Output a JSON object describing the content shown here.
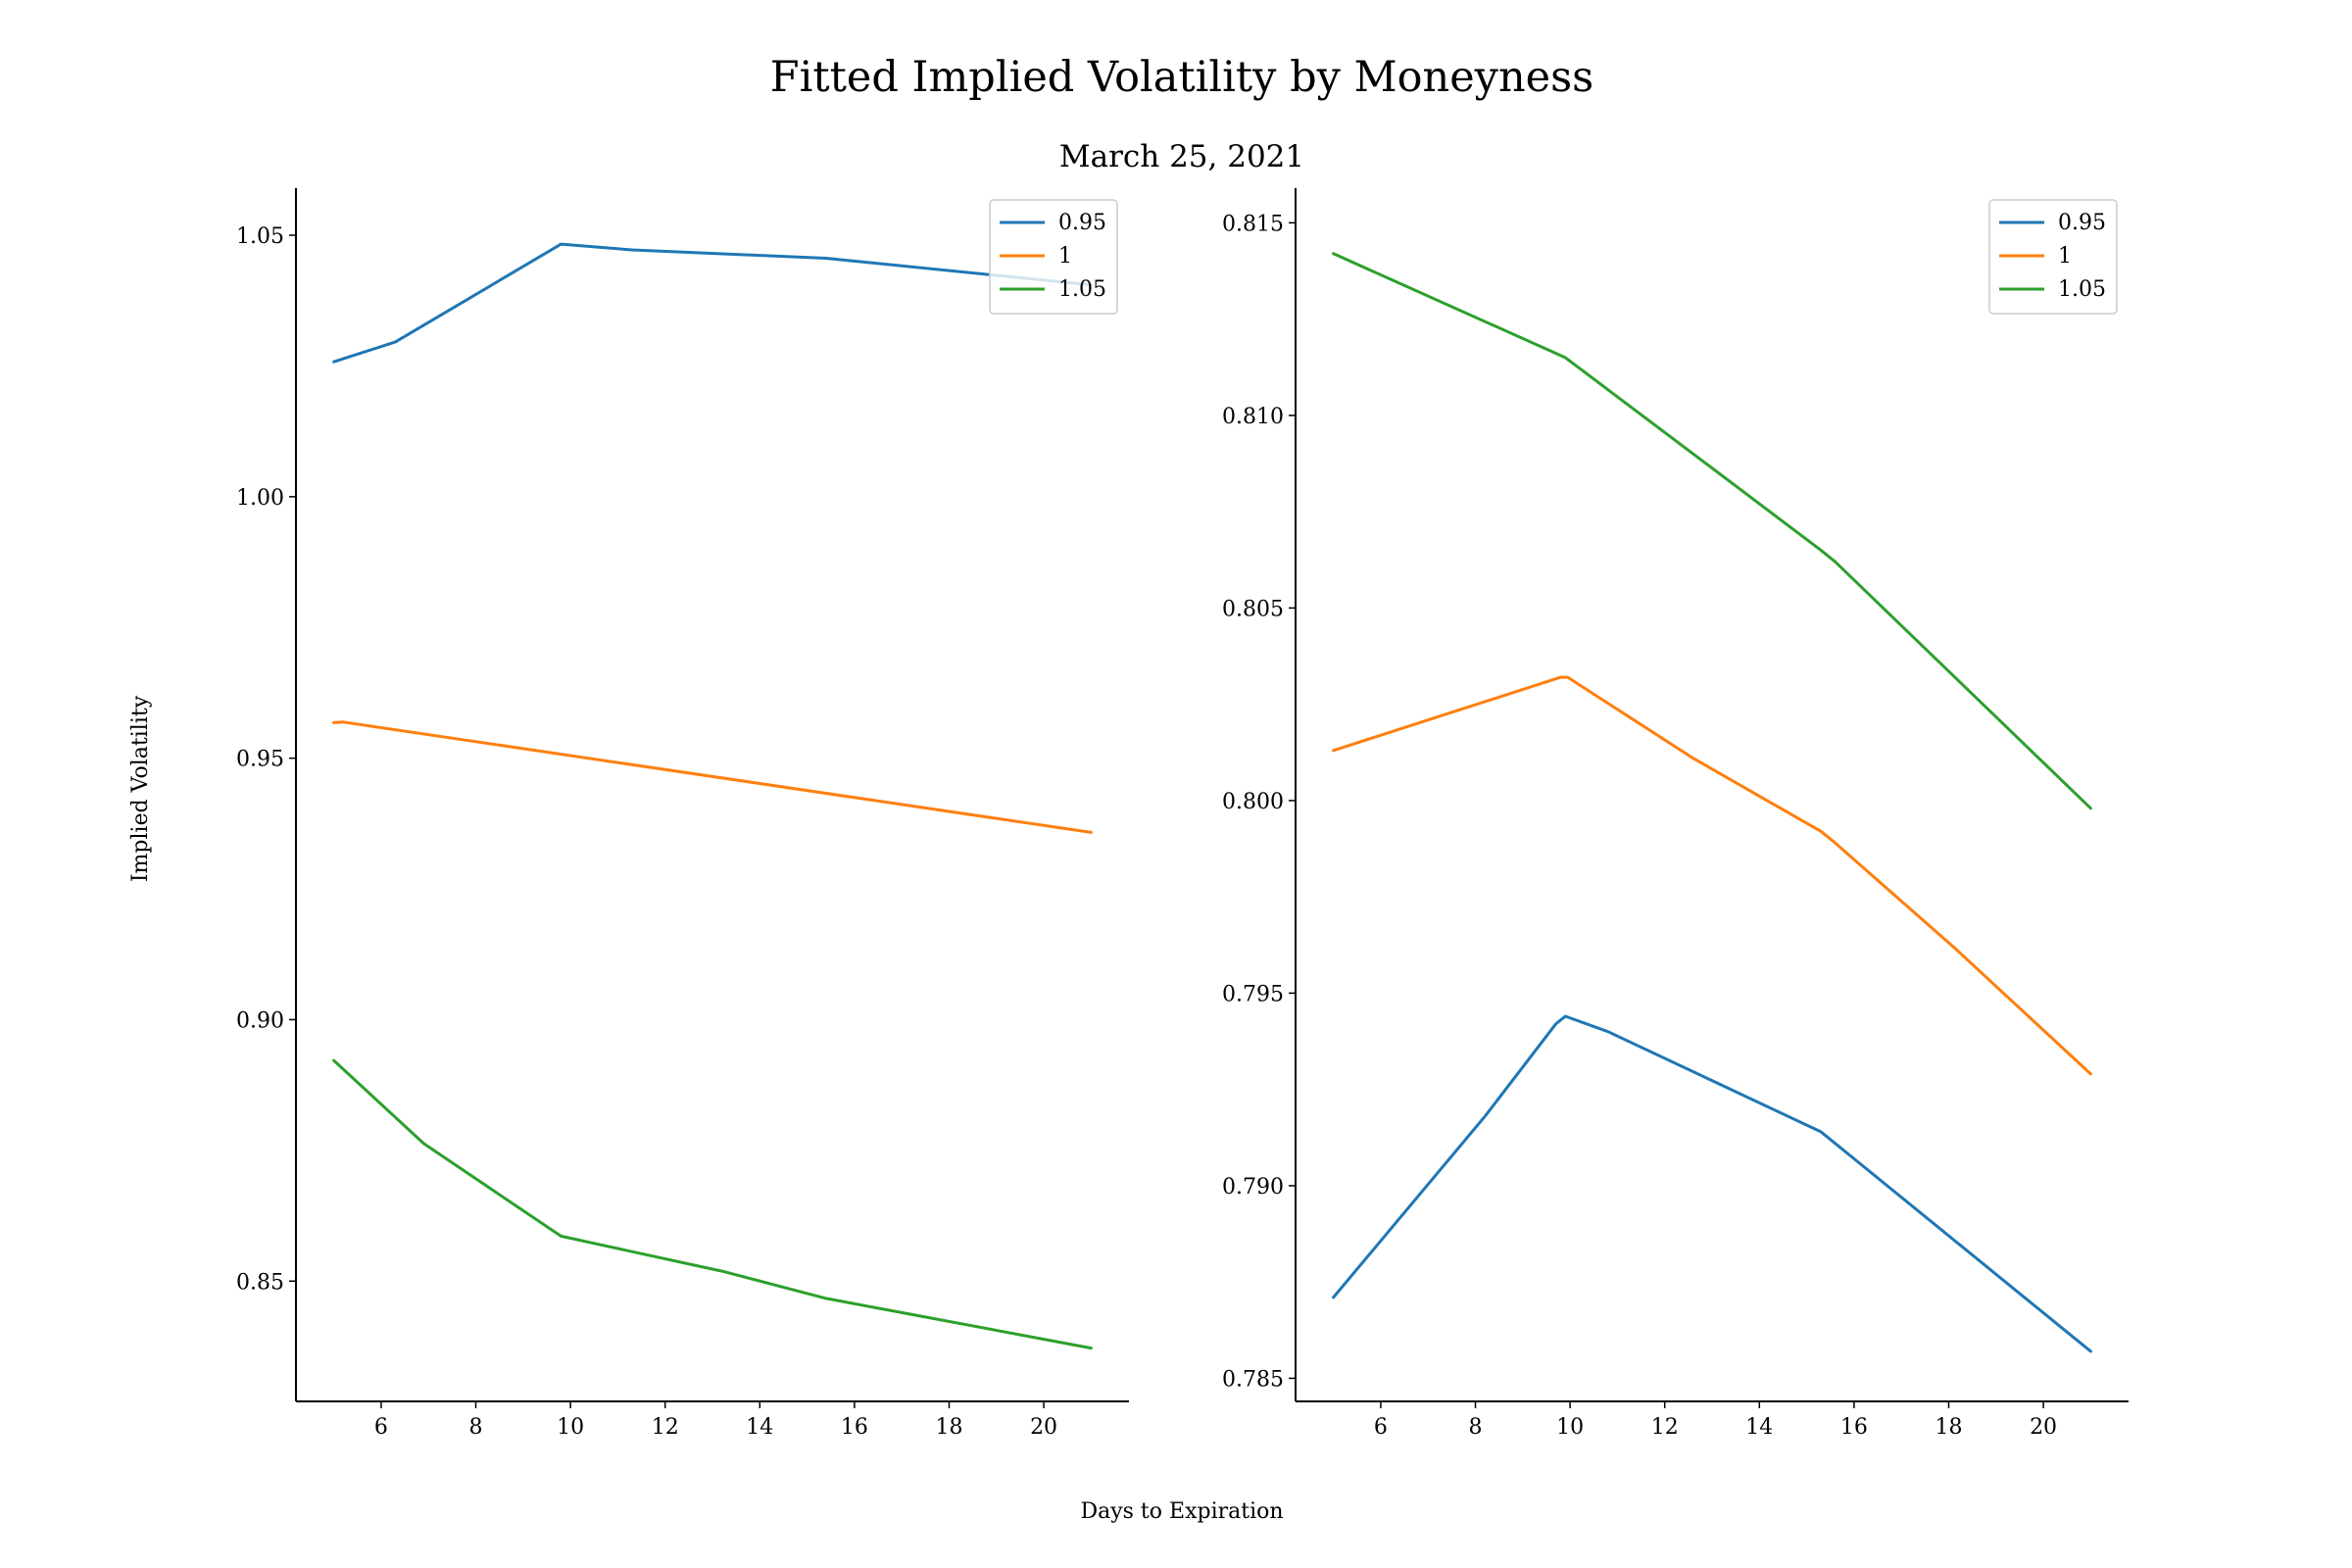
{
  "figure": {
    "title": "Fitted Implied Volatility by Moneyness",
    "subtitle": "March 25, 2021",
    "xlabel": "Days to Expiration",
    "ylabel": "Implied Volatility"
  },
  "colors": {
    "0.95": "#1f77b4",
    "1": "#ff7f0e",
    "1.05": "#2ca02c"
  },
  "chart_data": [
    {
      "type": "line",
      "legend_position": "top-right",
      "grid": false,
      "xlim": [
        4.2,
        21.8
      ],
      "ylim": [
        0.827,
        1.059
      ],
      "xticks": [
        6,
        8,
        10,
        12,
        14,
        16,
        18,
        20
      ],
      "yticks": [
        0.85,
        0.9,
        0.95,
        1.0,
        1.05
      ],
      "ytick_labels": [
        "0.85",
        "0.90",
        "0.95",
        "1.00",
        "1.05"
      ],
      "series": [
        {
          "name": "0.95",
          "color": "#1f77b4",
          "x": [
            5,
            6.3,
            9.8,
            11.3,
            15.4,
            21
          ],
          "y": [
            1.0258,
            1.0296,
            1.0483,
            1.0472,
            1.0456,
            1.0405
          ]
        },
        {
          "name": "1",
          "color": "#ff7f0e",
          "x": [
            5,
            5.2,
            21
          ],
          "y": [
            0.9568,
            0.9569,
            0.9358
          ]
        },
        {
          "name": "1.05",
          "color": "#2ca02c",
          "x": [
            5,
            6.9,
            9.8,
            13.2,
            15.4,
            21
          ],
          "y": [
            0.8922,
            0.8763,
            0.8586,
            0.8519,
            0.8467,
            0.8372
          ]
        }
      ]
    },
    {
      "type": "line",
      "legend_position": "top-right",
      "grid": false,
      "xlim": [
        4.2,
        21.8
      ],
      "ylim": [
        0.7844,
        0.8159
      ],
      "xticks": [
        6,
        8,
        10,
        12,
        14,
        16,
        18,
        20
      ],
      "yticks": [
        0.785,
        0.79,
        0.795,
        0.8,
        0.805,
        0.81,
        0.815
      ],
      "ytick_labels": [
        "0.785",
        "0.790",
        "0.795",
        "0.800",
        "0.805",
        "0.810",
        "0.815"
      ],
      "series": [
        {
          "name": "0.95",
          "color": "#1f77b4",
          "x": [
            5,
            8.2,
            9.7,
            9.9,
            10.8,
            15.3,
            15.6,
            21
          ],
          "y": [
            0.7871,
            0.7918,
            0.7942,
            0.7944,
            0.794,
            0.7914,
            0.7911,
            0.7857
          ]
        },
        {
          "name": "1",
          "color": "#ff7f0e",
          "x": [
            5,
            9.8,
            9.95,
            12.6,
            15.3,
            15.6,
            18.1,
            21
          ],
          "y": [
            0.8013,
            0.8032,
            0.8032,
            0.8011,
            0.7992,
            0.7989,
            0.7962,
            0.7929
          ]
        },
        {
          "name": "1.05",
          "color": "#2ca02c",
          "x": [
            5,
            9.9,
            15.3,
            15.6,
            21
          ],
          "y": [
            0.8142,
            0.8115,
            0.8065,
            0.8062,
            0.7998
          ]
        }
      ]
    }
  ]
}
